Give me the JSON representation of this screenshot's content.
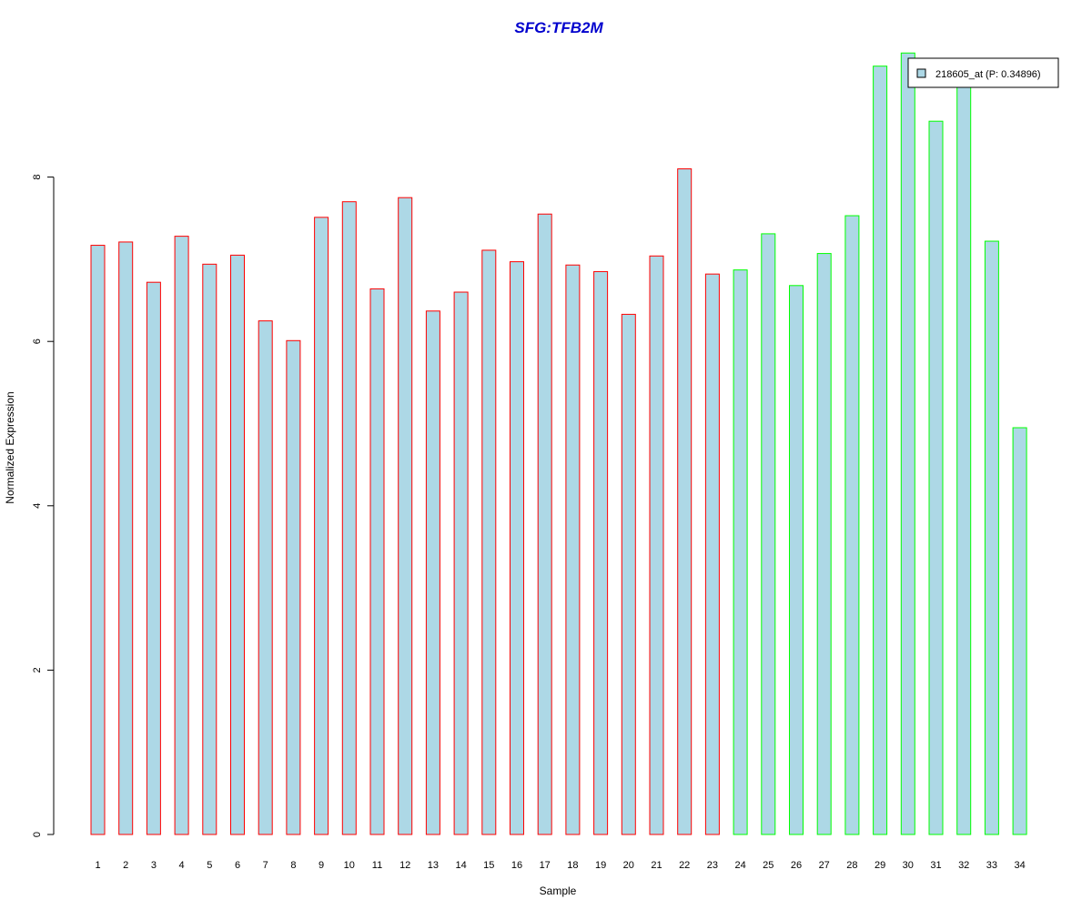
{
  "chart_data": {
    "type": "bar",
    "title": "SFG:TFB2M",
    "xlabel": "Sample",
    "ylabel": "Normalized Expression",
    "categories": [
      "1",
      "2",
      "3",
      "4",
      "5",
      "6",
      "7",
      "8",
      "9",
      "10",
      "11",
      "12",
      "13",
      "14",
      "15",
      "16",
      "17",
      "18",
      "19",
      "20",
      "21",
      "22",
      "23",
      "24",
      "25",
      "26",
      "27",
      "28",
      "29",
      "30",
      "31",
      "32",
      "33",
      "34"
    ],
    "series": [
      {
        "name": "218605_at (P: 0.34896)",
        "values": [
          7.17,
          7.21,
          6.72,
          7.28,
          6.94,
          7.05,
          6.25,
          6.01,
          7.51,
          7.7,
          6.64,
          7.75,
          6.37,
          6.6,
          7.11,
          6.97,
          7.55,
          6.93,
          6.85,
          6.33,
          7.04,
          8.1,
          6.82,
          6.87,
          7.31,
          6.68,
          7.07,
          7.53,
          9.35,
          9.51,
          8.68,
          9.2,
          7.22,
          4.95
        ]
      }
    ],
    "group_colors": [
      "#ff0000",
      "#ff0000",
      "#ff0000",
      "#ff0000",
      "#ff0000",
      "#ff0000",
      "#ff0000",
      "#ff0000",
      "#ff0000",
      "#ff0000",
      "#ff0000",
      "#ff0000",
      "#ff0000",
      "#ff0000",
      "#ff0000",
      "#ff0000",
      "#ff0000",
      "#ff0000",
      "#ff0000",
      "#ff0000",
      "#ff0000",
      "#ff0000",
      "#ff0000",
      "#00ff00",
      "#00ff00",
      "#00ff00",
      "#00ff00",
      "#00ff00",
      "#00ff00",
      "#00ff00",
      "#00ff00",
      "#00ff00",
      "#00ff00",
      "#00ff00"
    ],
    "yticks": [
      "0",
      "2",
      "4",
      "6",
      "8"
    ],
    "ylim": [
      0,
      9.6
    ],
    "bar_fill": "#add8e6",
    "title_color": "#0000cd",
    "legend_position": "top-right",
    "grid": false
  }
}
